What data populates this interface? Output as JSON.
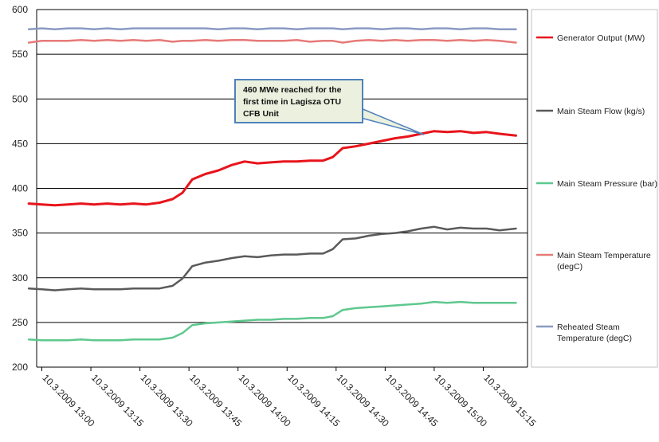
{
  "chart_data": {
    "type": "line",
    "title": "",
    "xlabel": "",
    "ylabel": "",
    "ylim": [
      200,
      600
    ],
    "y_ticks": [
      200,
      250,
      300,
      350,
      400,
      450,
      500,
      550,
      600
    ],
    "x_tick_labels": [
      "10.3.2009 13:00",
      "10.3.2009 13:15",
      "10.3.2009 13:30",
      "10.3.2009 13:45",
      "10.3.2009 14:00",
      "10.3.2009 14:15",
      "10.3.2009 14:30",
      "10.3.2009 14:45",
      "10.3.2009 15:00",
      "10.3.2009 15:15"
    ],
    "x": [
      "10.3.2009 12:56",
      "10.3.2009 13:00",
      "10.3.2009 13:04",
      "10.3.2009 13:08",
      "10.3.2009 13:12",
      "10.3.2009 13:16",
      "10.3.2009 13:20",
      "10.3.2009 13:24",
      "10.3.2009 13:28",
      "10.3.2009 13:32",
      "10.3.2009 13:36",
      "10.3.2009 13:40",
      "10.3.2009 13:43",
      "10.3.2009 13:46",
      "10.3.2009 13:50",
      "10.3.2009 13:54",
      "10.3.2009 13:58",
      "10.3.2009 14:02",
      "10.3.2009 14:06",
      "10.3.2009 14:10",
      "10.3.2009 14:14",
      "10.3.2009 14:18",
      "10.3.2009 14:22",
      "10.3.2009 14:26",
      "10.3.2009 14:29",
      "10.3.2009 14:32",
      "10.3.2009 14:36",
      "10.3.2009 14:40",
      "10.3.2009 14:44",
      "10.3.2009 14:48",
      "10.3.2009 14:52",
      "10.3.2009 14:56",
      "10.3.2009 15:00",
      "10.3.2009 15:04",
      "10.3.2009 15:08",
      "10.3.2009 15:12",
      "10.3.2009 15:16",
      "10.3.2009 15:20",
      "10.3.2009 15:25"
    ],
    "series": [
      {
        "name": "Generator Output (MW)",
        "color": "#e8141b",
        "values": [
          383,
          382,
          381,
          382,
          383,
          382,
          383,
          382,
          383,
          382,
          384,
          388,
          395,
          410,
          416,
          420,
          426,
          430,
          428,
          429,
          430,
          430,
          431,
          431,
          435,
          445,
          447,
          450,
          453,
          456,
          458,
          461,
          464,
          463,
          464,
          462,
          463,
          461,
          459
        ]
      },
      {
        "name": "Main Steam Flow (kg/s)",
        "color": "#5a5a5a",
        "values": [
          288,
          287,
          286,
          287,
          288,
          287,
          287,
          287,
          288,
          288,
          288,
          291,
          299,
          313,
          317,
          319,
          322,
          324,
          323,
          325,
          326,
          326,
          327,
          327,
          332,
          343,
          344,
          347,
          349,
          350,
          352,
          355,
          357,
          354,
          356,
          355,
          355,
          353,
          355
        ]
      },
      {
        "name": "Main Steam Pressure (bar)",
        "color": "#5ec88e",
        "values": [
          231,
          230,
          230,
          230,
          231,
          230,
          230,
          230,
          231,
          231,
          231,
          233,
          238,
          247,
          249,
          250,
          251,
          252,
          253,
          253,
          254,
          254,
          255,
          255,
          257,
          264,
          266,
          267,
          268,
          269,
          270,
          271,
          273,
          272,
          273,
          272,
          272,
          272,
          272
        ]
      },
      {
        "name": "Main Steam Temperature (degC)",
        "color": "#e67a78",
        "values": [
          563,
          565,
          565,
          565,
          566,
          565,
          566,
          565,
          566,
          565,
          566,
          564,
          565,
          565,
          566,
          565,
          566,
          566,
          565,
          565,
          565,
          566,
          564,
          565,
          565,
          563,
          565,
          566,
          565,
          566,
          565,
          566,
          566,
          565,
          566,
          565,
          566,
          565,
          563
        ]
      },
      {
        "name": "Reheated Steam Temperature (degC)",
        "color": "#8a9ac4",
        "values": [
          578,
          579,
          578,
          579,
          579,
          578,
          579,
          578,
          579,
          579,
          579,
          579,
          579,
          579,
          579,
          578,
          579,
          579,
          578,
          579,
          579,
          578,
          579,
          579,
          579,
          578,
          579,
          579,
          578,
          579,
          579,
          578,
          579,
          579,
          578,
          579,
          579,
          578,
          578
        ]
      }
    ],
    "legend": [
      {
        "lines": [
          "Generator Output (MW)"
        ],
        "color": "#e8141b"
      },
      {
        "lines": [
          "Main Steam Flow (kg/s)"
        ],
        "color": "#5a5a5a"
      },
      {
        "lines": [
          "Main Steam Pressure (bar)"
        ],
        "color": "#5ec88e"
      },
      {
        "lines": [
          "Main Steam Temperature",
          "(degC)"
        ],
        "color": "#e67a78"
      },
      {
        "lines": [
          "Reheated Steam",
          "Temperature (degC)"
        ],
        "color": "#8a9ac4"
      }
    ],
    "legend_position": "right",
    "grid": true,
    "annotation": {
      "lines": [
        "460 MWe reached for the",
        "first time in Lagisza OTU",
        "CFB Unit"
      ],
      "fill": "#ebf1de",
      "border": "#4f81bd"
    }
  }
}
